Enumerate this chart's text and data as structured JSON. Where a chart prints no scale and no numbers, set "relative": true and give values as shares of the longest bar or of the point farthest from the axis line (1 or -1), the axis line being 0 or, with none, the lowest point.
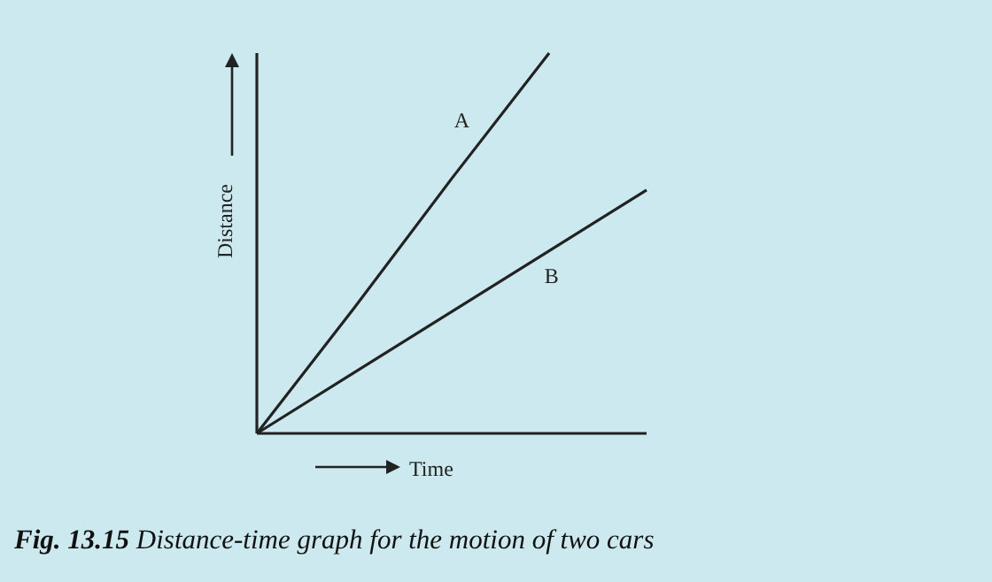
{
  "chart_data": {
    "type": "line",
    "relative": true,
    "xlabel": "Time",
    "ylabel": "Distance",
    "categories": [
      null,
      null,
      null,
      null,
      null
    ],
    "marker": "none",
    "line_style": "solid",
    "series": [
      {
        "name": "A",
        "color": "#222222",
        "values": [
          0,
          0.33,
          0.67,
          1,
          null
        ]
      },
      {
        "name": "B",
        "color": "#222222",
        "values": [
          0,
          0.16,
          0.32,
          0.48,
          0.64
        ]
      }
    ],
    "annotations": [
      "Fig. 13.15 Distance-time graph for the motion of two cars"
    ]
  }
}
